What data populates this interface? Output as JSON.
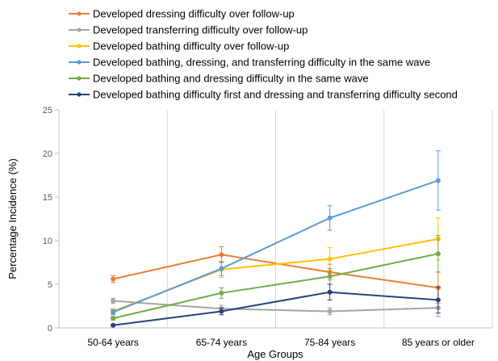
{
  "chart_data": {
    "type": "line",
    "title": "",
    "xlabel": "Age Groups",
    "ylabel": "Percentage Incidence (%)",
    "categories": [
      "50-64 years",
      "65-74 years",
      "75-84 years",
      "85 years or older"
    ],
    "ylim": [
      0,
      25
    ],
    "yticks": [
      0,
      5,
      10,
      15,
      20,
      25
    ],
    "grid": "vertical",
    "legend_position": "top",
    "series": [
      {
        "name": "Developed dressing difficulty over follow-up",
        "color": "#ED7D31",
        "values": [
          5.6,
          8.4,
          6.4,
          4.6
        ],
        "errors": [
          0.4,
          0.9,
          0.9,
          1.8
        ]
      },
      {
        "name": "Developed transferring difficulty over follow-up",
        "color": "#A5A5A5",
        "values": [
          3.1,
          2.2,
          1.9,
          2.3
        ],
        "errors": [
          0.3,
          0.4,
          0.4,
          1.0
        ]
      },
      {
        "name": "Developed bathing difficulty over follow-up",
        "color": "#FFC000",
        "values": [
          1.9,
          6.7,
          7.9,
          10.2
        ],
        "errors": [
          0.3,
          0.9,
          1.3,
          2.4
        ]
      },
      {
        "name": "Developed bathing, dressing, and transferring difficulty in the same wave",
        "color": "#5B9BD5",
        "values": [
          1.8,
          6.8,
          12.6,
          16.9
        ],
        "errors": [
          0.3,
          0.8,
          1.4,
          3.4
        ]
      },
      {
        "name": "Developed bathing and dressing difficulty in the same wave",
        "color": "#70AD47",
        "values": [
          1.1,
          4.0,
          5.9,
          8.5
        ],
        "errors": [
          0.2,
          0.6,
          0.9,
          2.1
        ]
      },
      {
        "name": "Developed bathing difficulty first and dressing and transferring difficulty second",
        "color": "#264478",
        "values": [
          0.3,
          1.9,
          4.1,
          3.2
        ],
        "errors": [
          0.1,
          0.4,
          0.9,
          1.5
        ]
      }
    ]
  }
}
